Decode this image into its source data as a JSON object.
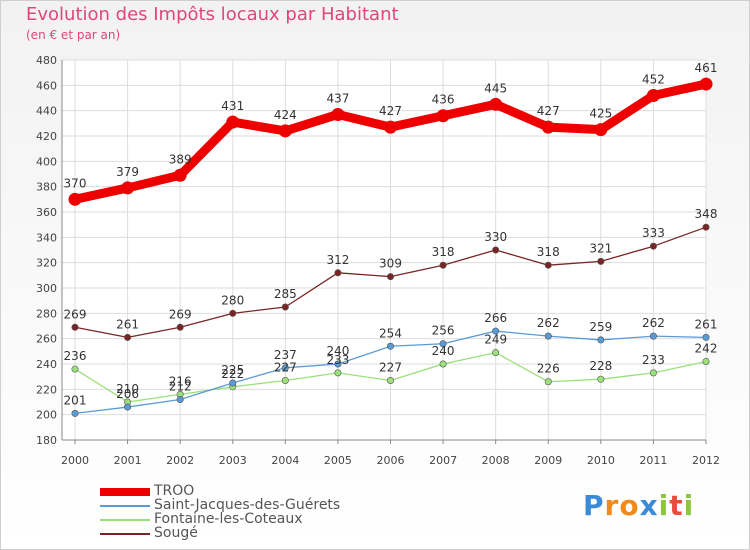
{
  "title": "Evolution des Impôts locaux par Habitant",
  "subtitle": "(en € et par an)",
  "logo": {
    "text": "Proxiti",
    "letters": [
      "P",
      "r",
      "o",
      "x",
      "i",
      "t",
      "i"
    ],
    "colors": [
      "#3b8ad8",
      "#f08a1c",
      "#f08a1c",
      "#3b8ad8",
      "#8cc63f",
      "#e84c3d",
      "#8cc63f"
    ]
  },
  "chart_data": {
    "type": "line",
    "title": "Evolution des Impôts locaux par Habitant",
    "subtitle": "(en € et par an)",
    "xlabel": "",
    "ylabel": "",
    "categories": [
      "2000",
      "2001",
      "2002",
      "2003",
      "2004",
      "2005",
      "2006",
      "2007",
      "2008",
      "2009",
      "2010",
      "2011",
      "2012"
    ],
    "ylim": [
      180,
      480
    ],
    "yticks": [
      180,
      200,
      220,
      240,
      260,
      280,
      300,
      320,
      340,
      360,
      380,
      400,
      420,
      440,
      460,
      480
    ],
    "grid": true,
    "legend_position": "bottom-left",
    "series": [
      {
        "name": "TROO",
        "color": "#ee0000",
        "values": [
          370,
          379,
          389,
          431,
          424,
          437,
          427,
          436,
          445,
          427,
          425,
          452,
          461
        ]
      },
      {
        "name": "Saint-Jacques-des-Guérets",
        "color": "#5b9bd5",
        "values": [
          201,
          206,
          212,
          225,
          237,
          240,
          254,
          256,
          266,
          262,
          259,
          262,
          261
        ]
      },
      {
        "name": "Fontaine-les-Coteaux",
        "color": "#9be07a",
        "values": [
          236,
          210,
          216,
          222,
          227,
          233,
          227,
          240,
          249,
          226,
          228,
          233,
          242
        ]
      },
      {
        "name": "Sougé",
        "color": "#7a2525",
        "values": [
          269,
          261,
          269,
          280,
          285,
          312,
          309,
          318,
          330,
          318,
          321,
          333,
          348
        ]
      }
    ]
  }
}
